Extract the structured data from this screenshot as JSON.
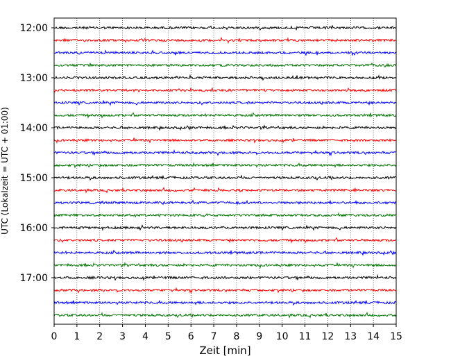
{
  "chart_data": {
    "type": "line",
    "title": "",
    "xlabel": "Zeit  [min]",
    "ylabel": "UTC (Lokalzeit = UTC + 01:00)",
    "xlim": [
      0,
      15
    ],
    "x_ticks": [
      "0",
      "1",
      "2",
      "3",
      "4",
      "5",
      "6",
      "7",
      "8",
      "9",
      "10",
      "11",
      "12",
      "13",
      "14",
      "15"
    ],
    "y_ticks": [
      "12:00",
      "13:00",
      "14:00",
      "15:00",
      "16:00",
      "17:00"
    ],
    "grid": "vertical-dotted",
    "trace_colors": [
      "#000000",
      "#ff0000",
      "#0000ff",
      "#007700"
    ],
    "trace_count": 24,
    "trace_start": "12:00",
    "trace_interval_minutes": 15
  }
}
